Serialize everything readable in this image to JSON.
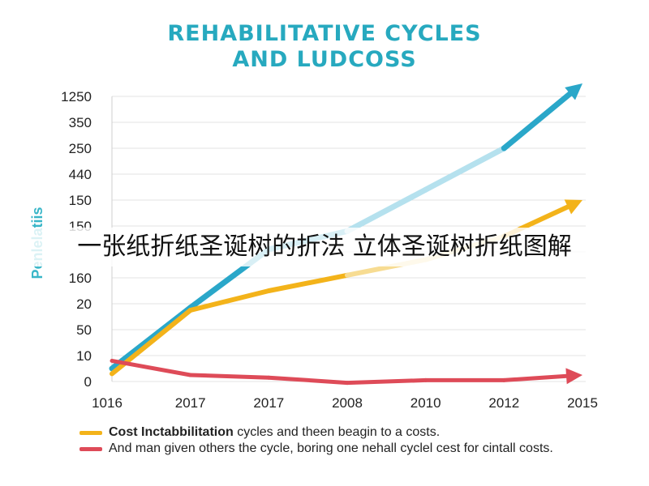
{
  "chart_data": {
    "type": "line",
    "title": [
      "REHABILITATIVE CYCLES",
      "AND LUDCOSS"
    ],
    "ylabel": "Penlelatiis",
    "xlabel": "",
    "x_ticks": [
      "1016",
      "2017",
      "2017",
      "2008",
      "2010",
      "2012",
      "2015"
    ],
    "y_ticks": [
      "1250",
      "350",
      "250",
      "440",
      "150",
      "150",
      "",
      "160",
      "20",
      "50",
      "10",
      "0"
    ],
    "grid": true,
    "legend_placement": "bottom",
    "series": [
      {
        "name": "",
        "color": "#2aa7c9",
        "light_color": "#b5e1ee",
        "values": [
          0.5,
          2.85,
          5.1,
          5.8,
          7.4,
          9.0,
          11.5
        ]
      },
      {
        "name": "",
        "color": "#f3b31a",
        "light_color": "#f7dc92",
        "values": [
          0.3,
          2.75,
          3.5,
          4.1,
          4.7,
          5.6,
          7.0
        ]
      },
      {
        "name": "",
        "color": "#de4b58",
        "light_color": "#de4b58",
        "values": [
          0.8,
          0.25,
          0.15,
          -0.05,
          0.05,
          0.05,
          0.25
        ]
      }
    ],
    "legend": [
      {
        "color": "#f3b31a",
        "bold": "Cost Inctabbilitation",
        "text": " cycles and theen beagin to a costs."
      },
      {
        "color": "#de4b58",
        "bold": "",
        "text": "And man given others the cycle, boring one nehall cyclel cest for cintall costs."
      }
    ]
  },
  "overlay": {
    "text": "一张纸折纸圣诞树的折法 立体圣诞树折纸图解"
  }
}
